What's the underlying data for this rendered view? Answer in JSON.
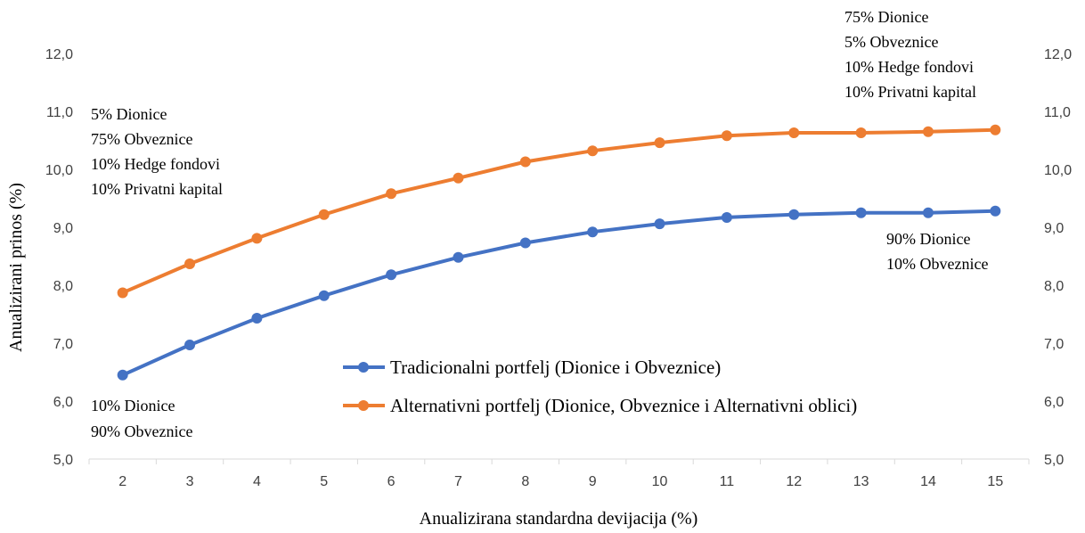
{
  "chart_data": {
    "type": "line",
    "title": "",
    "xlabel": "Anualizirana standardna devijacija (%)",
    "ylabel": "Anualizirani prinos (%)",
    "x": [
      2,
      3,
      4,
      5,
      6,
      7,
      8,
      9,
      10,
      11,
      12,
      13,
      14,
      15
    ],
    "ylim": [
      5.0,
      12.0
    ],
    "yticks": [
      "5,0",
      "6,0",
      "7,0",
      "8,0",
      "9,0",
      "10,0",
      "11,0",
      "12,0"
    ],
    "grid": false,
    "secondary_y_axis": true,
    "series": [
      {
        "name": "Tradicionalni portfelj (Dionice i Obveznice)",
        "color": "#4472C4",
        "values": [
          6.45,
          6.97,
          7.43,
          7.82,
          8.18,
          8.48,
          8.73,
          8.92,
          9.06,
          9.17,
          9.22,
          9.25,
          9.25,
          9.28
        ]
      },
      {
        "name": "Alternativni portfelj (Dionice, Obveznice i Alternativni oblici)",
        "color": "#ED7D31",
        "values": [
          7.87,
          8.37,
          8.81,
          9.22,
          9.58,
          9.85,
          10.13,
          10.32,
          10.46,
          10.58,
          10.63,
          10.63,
          10.65,
          10.68
        ]
      }
    ],
    "legend_position": "center-bottom",
    "annotations": [
      {
        "id": "start-alternative",
        "lines": [
          "5% Dionice",
          "75% Obveznice",
          "10% Hedge fondovi",
          "10% Privatni kapital"
        ]
      },
      {
        "id": "end-alternative",
        "lines": [
          "75% Dionice",
          "5% Obveznice",
          "10% Hedge fondovi",
          "10% Privatni kapital"
        ]
      },
      {
        "id": "start-traditional",
        "lines": [
          "10% Dionice",
          "90% Obveznice"
        ]
      },
      {
        "id": "end-traditional",
        "lines": [
          "90% Dionice",
          "10% Obveznice"
        ]
      }
    ]
  }
}
